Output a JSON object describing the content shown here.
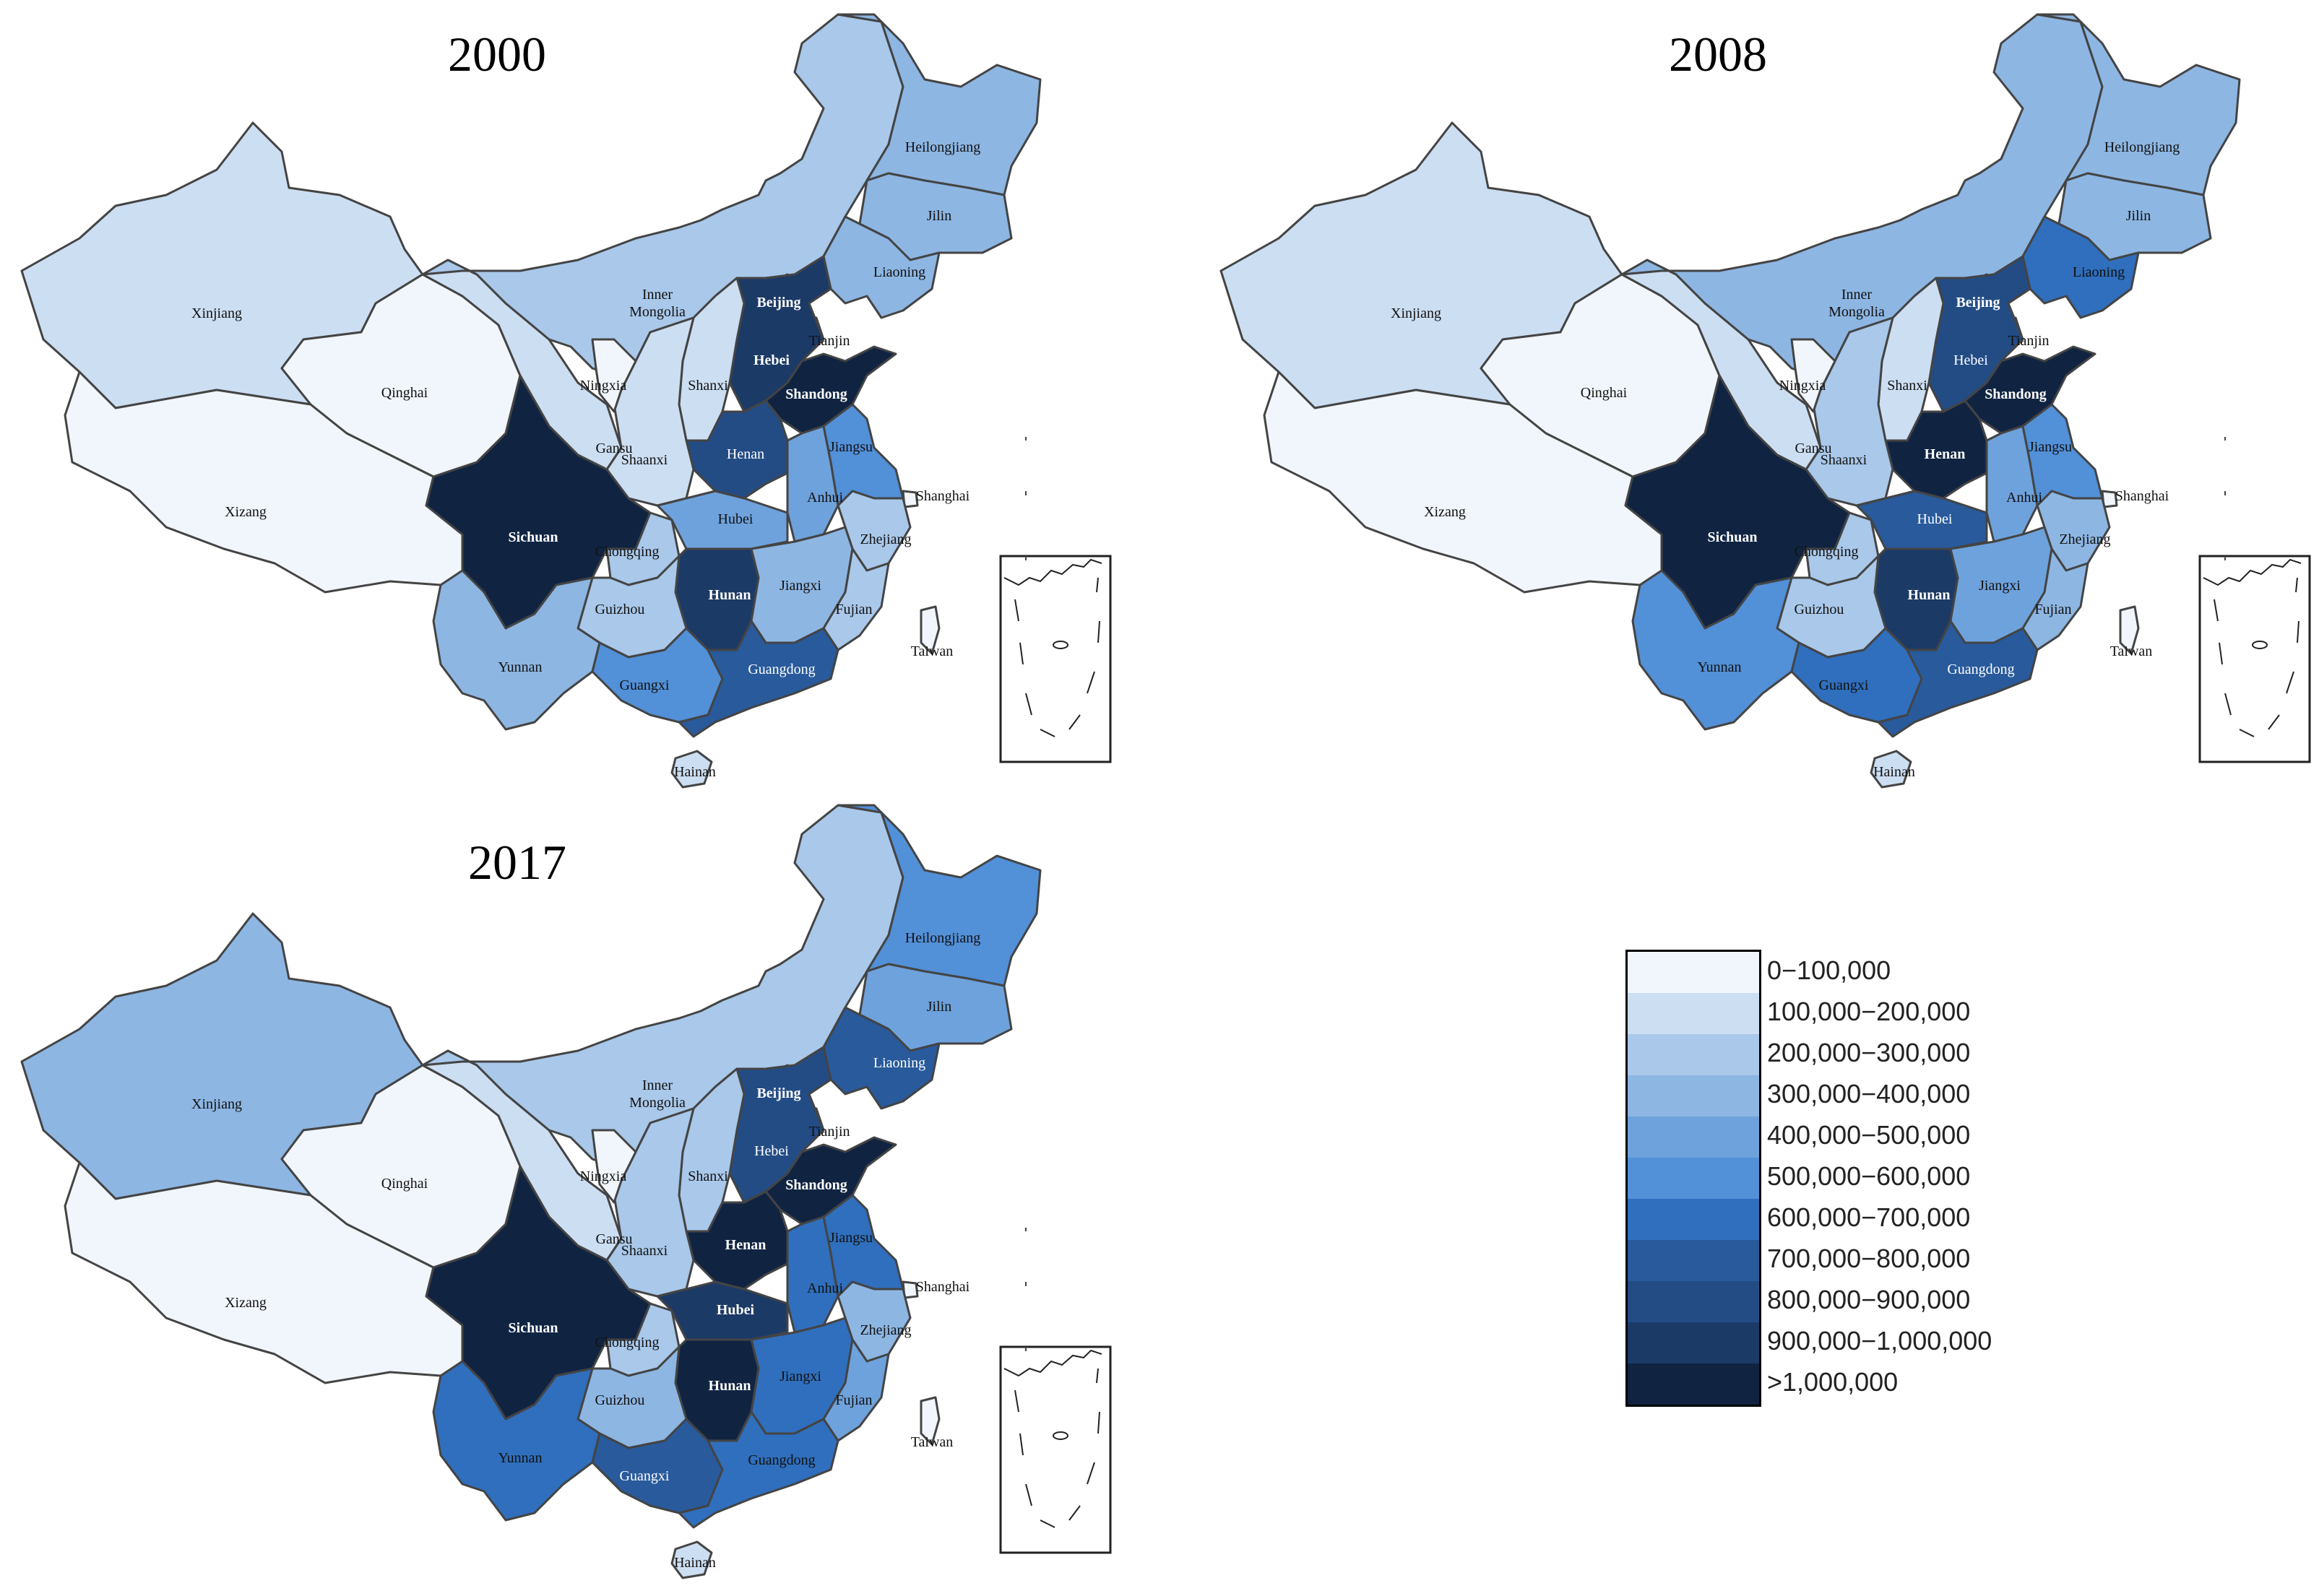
{
  "colors": {
    "bin0": "#f1f6fc",
    "bin1": "#ccdef2",
    "bin2": "#a9c8ea",
    "bin3": "#8db6e3",
    "bin4": "#6ea2dc",
    "bin5": "#5290d8",
    "bin6": "#2f6fbd",
    "bin7": "#285a9c",
    "bin8": "#234c85",
    "bin9": "#1c3a66",
    "bin10": "#102442",
    "border": "#444444"
  },
  "legend": {
    "items": [
      {
        "label": "0−100,000",
        "bin": 0
      },
      {
        "label": "100,000−200,000",
        "bin": 1
      },
      {
        "label": "200,000−300,000",
        "bin": 2
      },
      {
        "label": "300,000−400,000",
        "bin": 3
      },
      {
        "label": "400,000−500,000",
        "bin": 4
      },
      {
        "label": "500,000−600,000",
        "bin": 5
      },
      {
        "label": "600,000−700,000",
        "bin": 6
      },
      {
        "label": "700,000−800,000",
        "bin": 7
      },
      {
        "label": "800,000−900,000",
        "bin": 8
      },
      {
        "label": "900,000−1,000,000",
        "bin": 9
      },
      {
        "label": ">1,000,000",
        "bin": 10
      }
    ]
  },
  "maps": [
    {
      "title": "2000",
      "provinces": {
        "Xinjiang": 1,
        "Xizang": 0,
        "Qinghai": 0,
        "Gansu": 1,
        "Inner Mongolia": 2,
        "Heilongjiang": 3,
        "Jilin": 3,
        "Liaoning": 3,
        "Beijing": 9,
        "Tianjin": 0,
        "Hebei": 9,
        "Shanxi": 1,
        "Shandong": 10,
        "Henan": 8,
        "Shaanxi": 1,
        "Ningxia": 0,
        "Sichuan": 10,
        "Chongqing": 2,
        "Hubei": 4,
        "Anhui": 4,
        "Jiangsu": 5,
        "Shanghai": 0,
        "Zhejiang": 2,
        "Hunan": 9,
        "Jiangxi": 3,
        "Fujian": 2,
        "Guizhou": 2,
        "Yunnan": 3,
        "Guangxi": 5,
        "Guangdong": 7,
        "Hainan": 1,
        "Taiwan": 0
      }
    },
    {
      "title": "2008",
      "provinces": {
        "Xinjiang": 1,
        "Xizang": 0,
        "Qinghai": 0,
        "Gansu": 1,
        "Inner Mongolia": 3,
        "Heilongjiang": 3,
        "Jilin": 3,
        "Liaoning": 6,
        "Beijing": 9,
        "Tianjin": 0,
        "Hebei": 8,
        "Shanxi": 1,
        "Shandong": 10,
        "Henan": 10,
        "Shaanxi": 2,
        "Ningxia": 0,
        "Sichuan": 10,
        "Chongqing": 2,
        "Hubei": 7,
        "Anhui": 4,
        "Jiangsu": 5,
        "Shanghai": 0,
        "Zhejiang": 3,
        "Hunan": 9,
        "Jiangxi": 4,
        "Fujian": 3,
        "Guizhou": 2,
        "Yunnan": 5,
        "Guangxi": 6,
        "Guangdong": 7,
        "Hainan": 1,
        "Taiwan": 0
      }
    },
    {
      "title": "2017",
      "provinces": {
        "Xinjiang": 3,
        "Xizang": 0,
        "Qinghai": 0,
        "Gansu": 1,
        "Inner Mongolia": 2,
        "Heilongjiang": 5,
        "Jilin": 4,
        "Liaoning": 7,
        "Beijing": 9,
        "Tianjin": 0,
        "Hebei": 8,
        "Shanxi": 2,
        "Shandong": 10,
        "Henan": 10,
        "Shaanxi": 2,
        "Ningxia": 0,
        "Sichuan": 10,
        "Chongqing": 2,
        "Hubei": 9,
        "Anhui": 6,
        "Jiangsu": 6,
        "Shanghai": 0,
        "Zhejiang": 3,
        "Hunan": 10,
        "Jiangxi": 6,
        "Fujian": 4,
        "Guizhou": 3,
        "Yunnan": 6,
        "Guangxi": 7,
        "Guangdong": 6,
        "Hainan": 1,
        "Taiwan": 0
      }
    }
  ],
  "labels": {
    "Xinjiang": "Xinjiang",
    "Xizang": "Xizang",
    "Qinghai": "Qinghai",
    "Gansu": "Gansu",
    "Inner Mongolia": "Inner\nMongolia",
    "Heilongjiang": "Heilongjiang",
    "Jilin": "Jilin",
    "Liaoning": "Liaoning",
    "Beijing": "Beijing",
    "Tianjin": "Tianjin",
    "Hebei": "Hebei",
    "Shanxi": "Shanxi",
    "Shandong": "Shandong",
    "Henan": "Henan",
    "Shaanxi": "Shaanxi",
    "Ningxia": "Ningxia",
    "Sichuan": "Sichuan",
    "Chongqing": "Chongqing",
    "Hubei": "Hubei",
    "Anhui": "Anhui",
    "Jiangsu": "Jiangsu",
    "Shanghai": "Shanghai",
    "Zhejiang": "Zhejiang",
    "Hunan": "Hunan",
    "Jiangxi": "Jiangxi",
    "Fujian": "Fujian",
    "Guizhou": "Guizhou",
    "Yunnan": "Yunnan",
    "Guangxi": "Guangxi",
    "Guangdong": "Guangdong",
    "Hainan": "Hainan",
    "Taiwan": "Taiwan"
  }
}
